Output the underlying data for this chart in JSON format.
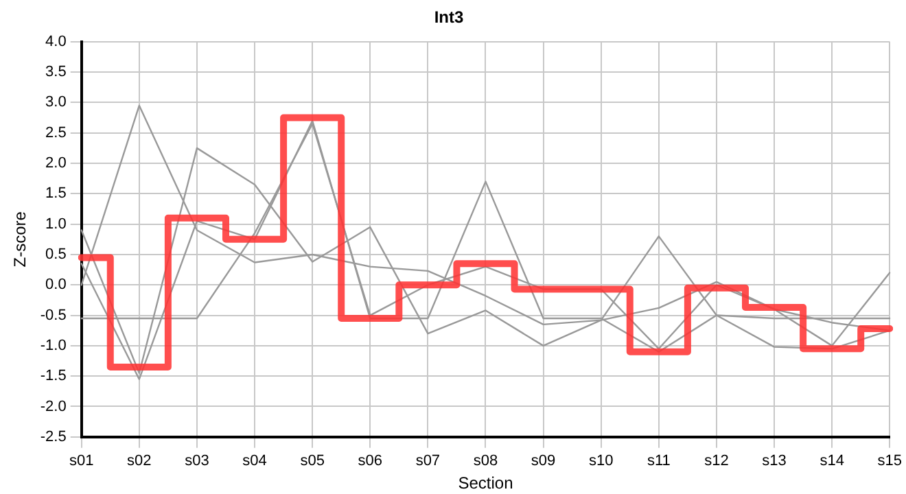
{
  "chart_data": {
    "type": "line",
    "title": "Int3",
    "xlabel": "Section",
    "ylabel": "Z-score",
    "categories": [
      "s01",
      "s02",
      "s03",
      "s04",
      "s05",
      "s06",
      "s07",
      "s08",
      "s09",
      "s10",
      "s11",
      "s12",
      "s13",
      "s14",
      "s15"
    ],
    "series": [
      {
        "color": "#999999",
        "values": [
          0.9,
          -1.45,
          2.25,
          1.65,
          0.38,
          0.95,
          -0.8,
          -0.42,
          -1.0,
          -0.58,
          0.8,
          -0.5,
          -1.02,
          -1.05,
          -0.75
        ]
      },
      {
        "color": "#999999",
        "values": [
          0.0,
          2.95,
          0.9,
          0.37,
          0.5,
          0.3,
          0.23,
          -0.18,
          -0.65,
          -0.58,
          -0.38,
          0.05,
          -0.4,
          -0.62,
          -0.75
        ]
      },
      {
        "color": "#999999",
        "values": [
          0.35,
          -1.55,
          1.05,
          0.75,
          2.7,
          -0.55,
          -0.55,
          1.7,
          -0.55,
          -0.55,
          -1.1,
          -0.5,
          -0.55,
          -0.55,
          -0.55
        ]
      },
      {
        "color": "#999999",
        "values": [
          -0.55,
          -0.55,
          -0.55,
          0.85,
          2.65,
          -0.5,
          0.0,
          0.3,
          -0.07,
          -0.07,
          -1.05,
          0.0,
          -0.4,
          -1.0,
          0.2
        ]
      },
      {
        "type": "step",
        "color": "#ff3333",
        "values": [
          0.45,
          -1.35,
          1.1,
          0.75,
          2.75,
          -0.55,
          0.0,
          0.35,
          -0.07,
          -0.07,
          -1.1,
          -0.05,
          -0.37,
          -1.05,
          -0.72
        ]
      }
    ],
    "ylim": [
      -2.5,
      4.0
    ],
    "yticks": [
      -2.5,
      {
        "value": -2,
        "label": "-2.0"
      },
      -1.5,
      {
        "value": -1,
        "label": "-1.0"
      },
      -0.5,
      {
        "value": 0,
        "label": "0.0"
      },
      0.5,
      {
        "value": 1,
        "label": "1.0"
      },
      1.5,
      {
        "value": 2,
        "label": "2.0"
      },
      2.5,
      {
        "value": 3,
        "label": "3.0"
      },
      3.5,
      {
        "value": 4,
        "label": "4.0"
      }
    ],
    "grid": true,
    "legend": false,
    "marker": "none",
    "line_style": "solid"
  }
}
